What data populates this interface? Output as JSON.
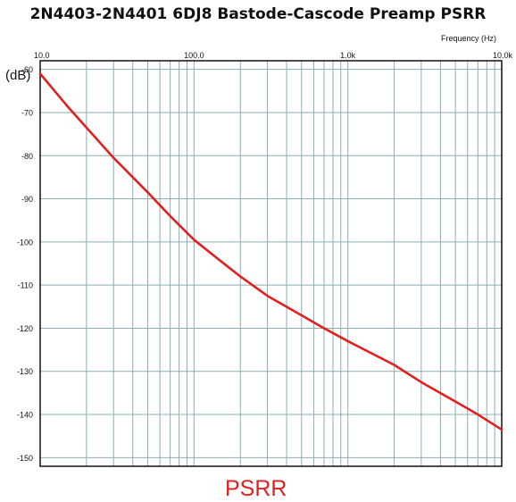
{
  "chart_data": {
    "type": "line",
    "title": "2N4403-2N4401 6DJ8 Bastode-Cascode Preamp PSRR",
    "xlabel": "Frequency  (Hz)",
    "ylabel": "(dB)",
    "x_scale": "log",
    "xlim": [
      10,
      10000
    ],
    "ylim": [
      -152,
      -58
    ],
    "x_ticks": [
      {
        "value": 10,
        "label": "10.0"
      },
      {
        "value": 100,
        "label": "100.0"
      },
      {
        "value": 1000,
        "label": "1.0k"
      },
      {
        "value": 10000,
        "label": "10.0k"
      }
    ],
    "y_ticks": [
      {
        "value": -60,
        "label": "-60"
      },
      {
        "value": -70,
        "label": "-70"
      },
      {
        "value": -80,
        "label": "-80"
      },
      {
        "value": -90,
        "label": "-90"
      },
      {
        "value": -100,
        "label": "-100"
      },
      {
        "value": -110,
        "label": "-110"
      },
      {
        "value": -120,
        "label": "-120"
      },
      {
        "value": -130,
        "label": "-130"
      },
      {
        "value": -140,
        "label": "-140"
      },
      {
        "value": -150,
        "label": "-150"
      }
    ],
    "grid": true,
    "legend": "",
    "series": [
      {
        "name": "PSRR",
        "color": "#e21f1f",
        "x": [
          10,
          15,
          20,
          30,
          50,
          70,
          100,
          150,
          200,
          300,
          500,
          700,
          1000,
          2000,
          3000,
          5000,
          7000,
          10000
        ],
        "y": [
          -61,
          -68.5,
          -73.5,
          -80.5,
          -88.5,
          -94,
          -99.5,
          -104.5,
          -108,
          -112.5,
          -117,
          -120,
          -123,
          -128.5,
          -132.5,
          -137,
          -140,
          -143.5
        ]
      }
    ]
  },
  "colors": {
    "grid": "#8aaeb2",
    "frame": "#111111",
    "series": "#e21f1f"
  }
}
